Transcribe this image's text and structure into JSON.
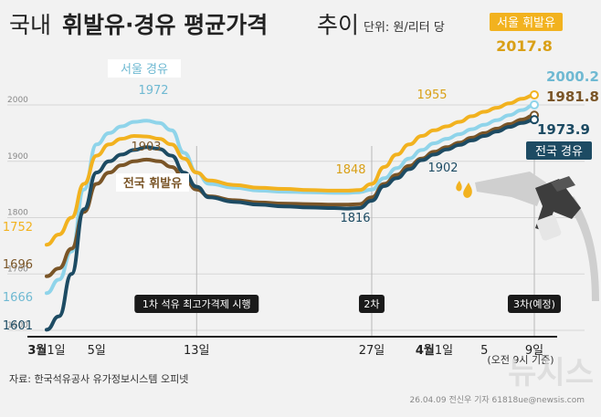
{
  "chart_data": {
    "type": "line",
    "title_prefix": "국내",
    "title_bold": "휘발유·경유 평균가격",
    "title_suffix": "추이",
    "unit": "단위: 원/리터 당",
    "ylim": [
      1600,
      2060
    ],
    "y_ticks": [
      1600,
      1700,
      1800,
      1900,
      2000
    ],
    "x_ticks": [
      {
        "label": "3월1일",
        "day": 1,
        "bold_part": "3월",
        "rest": "1일"
      },
      {
        "label": "5일",
        "day": 5
      },
      {
        "label": "13일",
        "day": 13
      },
      {
        "label": "27일",
        "day": 27
      },
      {
        "label": "4월1일",
        "day": 32,
        "bold_part": "4월",
        "rest": "1일"
      },
      {
        "label": "5",
        "day": 36
      },
      {
        "label": "9일",
        "day": 40
      }
    ],
    "x_range": [
      0.2,
      40
    ],
    "series": [
      {
        "name": "서울 휘발유",
        "color": "#f2b21f",
        "label_color": "#f2b21f",
        "x": [
          1,
          2,
          3,
          4,
          5,
          6,
          7,
          8,
          9,
          10,
          11,
          12,
          13,
          14,
          16,
          18,
          20,
          22,
          24,
          25,
          26,
          27,
          28,
          29,
          30,
          31,
          32,
          33,
          34,
          35,
          36,
          37,
          38,
          39,
          40
        ],
        "values": [
          1752,
          1770,
          1800,
          1860,
          1910,
          1930,
          1940,
          1945,
          1944,
          1940,
          1930,
          1905,
          1880,
          1866,
          1858,
          1853,
          1851,
          1849,
          1848,
          1848,
          1849,
          1860,
          1890,
          1912,
          1930,
          1945,
          1955,
          1962,
          1970,
          1980,
          1988,
          1995,
          2003,
          2011,
          2017.8
        ],
        "start_label": "1752",
        "mid_label": "1955",
        "end_value": "2017.8"
      },
      {
        "name": "서울 경유",
        "color": "#8fd4ea",
        "label_color": "#8fd4ea",
        "x": [
          1,
          2,
          3,
          4,
          5,
          6,
          7,
          8,
          9,
          10,
          11,
          12,
          13,
          14,
          16,
          18,
          20,
          22,
          24,
          25,
          26,
          27,
          28,
          29,
          30,
          31,
          32,
          33,
          34,
          35,
          36,
          37,
          38,
          39,
          40
        ],
        "values": [
          1666,
          1690,
          1740,
          1850,
          1930,
          1950,
          1962,
          1970,
          1972,
          1968,
          1955,
          1915,
          1880,
          1860,
          1853,
          1848,
          1846,
          1845,
          1844,
          1844,
          1845,
          1850,
          1870,
          1888,
          1905,
          1920,
          1932,
          1940,
          1948,
          1957,
          1965,
          1973,
          1982,
          1991,
          2000.2
        ],
        "start_label": "1666",
        "peak_label": "1972",
        "end_value": "2000.2"
      },
      {
        "name": "전국 휘발유",
        "color": "#7a5527",
        "label_color": "#7a5527",
        "x": [
          1,
          2,
          3,
          4,
          5,
          6,
          7,
          8,
          9,
          10,
          11,
          12,
          13,
          14,
          16,
          18,
          20,
          22,
          24,
          25,
          26,
          27,
          28,
          29,
          30,
          31,
          32,
          33,
          34,
          35,
          36,
          37,
          38,
          39,
          40
        ],
        "values": [
          1696,
          1710,
          1745,
          1810,
          1860,
          1880,
          1893,
          1900,
          1903,
          1900,
          1890,
          1870,
          1850,
          1838,
          1831,
          1827,
          1825,
          1824,
          1823,
          1823,
          1824,
          1836,
          1860,
          1876,
          1892,
          1905,
          1917,
          1925,
          1933,
          1942,
          1950,
          1958,
          1966,
          1974,
          1981.8
        ],
        "start_label": "1696",
        "peak_label": "1903",
        "end_value": "1981.8"
      },
      {
        "name": "전국 경유",
        "color": "#1d4b63",
        "label_color": "#1d4b63",
        "x": [
          1,
          2,
          3,
          4,
          5,
          6,
          7,
          8,
          9,
          10,
          11,
          12,
          13,
          14,
          16,
          18,
          20,
          22,
          24,
          25,
          26,
          27,
          28,
          29,
          30,
          31,
          32,
          33,
          34,
          35,
          36,
          37,
          38,
          39,
          40
        ],
        "values": [
          1601,
          1625,
          1700,
          1815,
          1880,
          1900,
          1912,
          1920,
          1925,
          1922,
          1910,
          1880,
          1855,
          1836,
          1828,
          1823,
          1820,
          1818,
          1817,
          1816,
          1817,
          1830,
          1856,
          1870,
          1886,
          1902,
          1912,
          1921,
          1929,
          1937,
          1945,
          1953,
          1961,
          1968,
          1973.9
        ],
        "start_label": "1601",
        "mid_label": "1816",
        "mid2_label": "1902",
        "end_value": "1973.9"
      }
    ],
    "annotations": [
      {
        "text": "1차 석유 최고가격제 시행",
        "day": 13
      },
      {
        "text": "2차",
        "day": 27
      },
      {
        "text": "3차(예정)",
        "day": 40
      }
    ],
    "label_1848": "1848"
  },
  "footer": {
    "source": "자료: 한국석유공사 유가정보시스템 오피넷",
    "time_note": "(오전 9시 기준)",
    "credit": "26.04.09 전신우 기자  61818ue@newsis.com",
    "watermark": "뉴시스"
  },
  "colors": {
    "background": "#f2f2f2",
    "annotation_box": "#1a1a1a",
    "pump_gray": "#cfcfcf",
    "pump_dark": "#3d3d3d",
    "drop_yellow": "#f2b21f"
  }
}
